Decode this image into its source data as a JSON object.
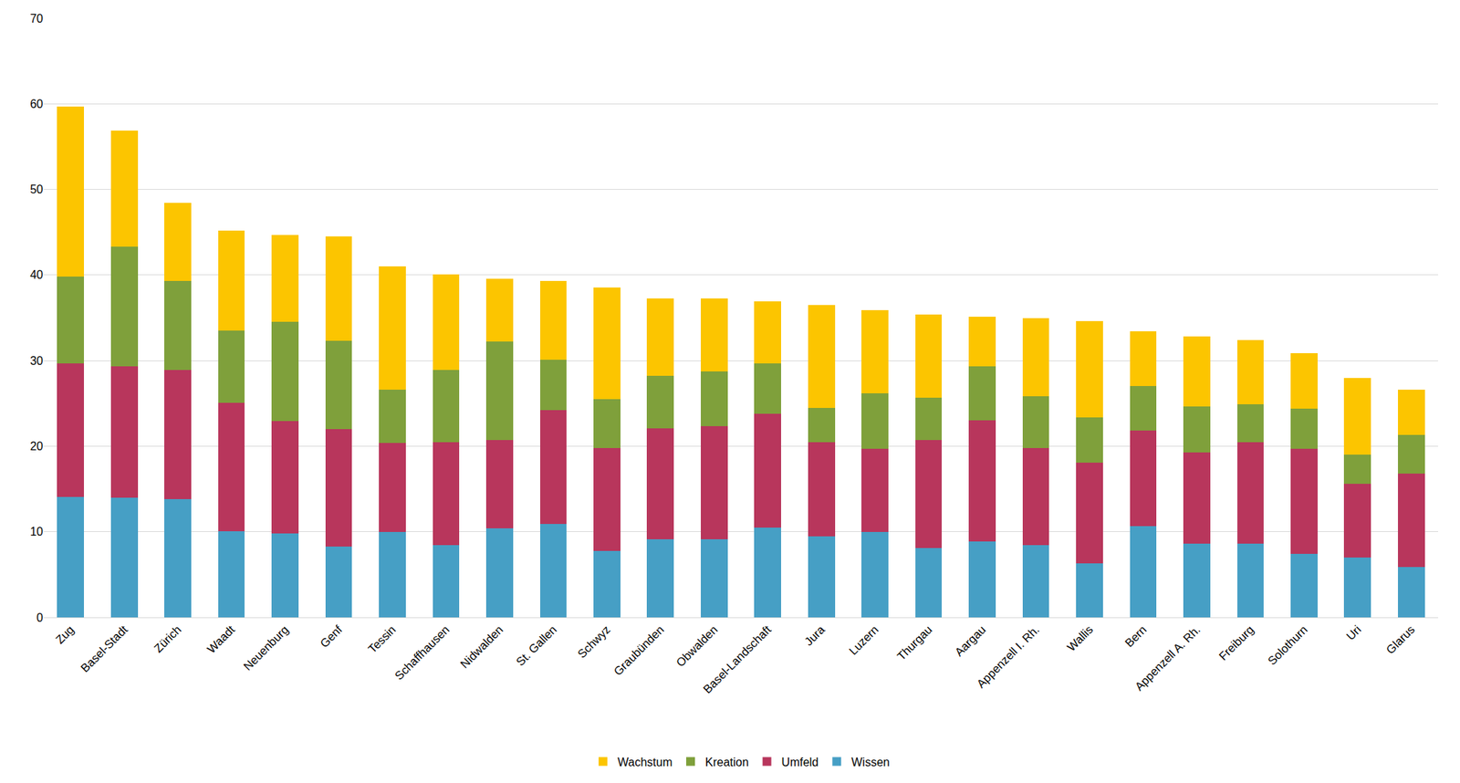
{
  "chart_data": {
    "type": "bar",
    "stacked": true,
    "grid": true,
    "legend": "bottom",
    "categories": [
      "Zug",
      "Basel-Stadt",
      "Zürich",
      "Waadt",
      "Neuenburg",
      "Genf",
      "Tessin",
      "Schaffhausen",
      "Nidwalden",
      "St. Gallen",
      "Schwyz",
      "Graubünden",
      "Obwalden",
      "Basel-Landschaft",
      "Jura",
      "Luzern",
      "Thurgau",
      "Aargau",
      "Appenzell I. Rh.",
      "Wallis",
      "Bern",
      "Appenzell A. Rh.",
      "Freiburg",
      "Solothurn",
      "Uri",
      "Glarus"
    ],
    "series": [
      {
        "name": "Wissen",
        "color": "#469fc5",
        "values": [
          14.1,
          14.0,
          13.8,
          10.1,
          9.8,
          8.3,
          10.0,
          8.4,
          10.4,
          10.9,
          7.8,
          9.1,
          9.1,
          10.5,
          9.5,
          10.0,
          8.1,
          8.9,
          8.4,
          6.3,
          10.7,
          8.6,
          8.6,
          7.4,
          7.0,
          5.9
        ]
      },
      {
        "name": "Umfeld",
        "color": "#b8365c",
        "values": [
          15.6,
          15.3,
          15.1,
          15.0,
          13.1,
          13.7,
          10.4,
          12.1,
          10.3,
          13.3,
          12.0,
          13.0,
          13.2,
          13.3,
          11.0,
          9.7,
          12.6,
          14.1,
          11.4,
          11.8,
          11.1,
          10.7,
          11.9,
          12.3,
          8.6,
          10.9
        ]
      },
      {
        "name": "Kreation",
        "color": "#7fa03b",
        "values": [
          10.1,
          14.0,
          10.4,
          8.4,
          11.6,
          10.3,
          6.2,
          8.4,
          11.5,
          5.9,
          5.7,
          6.1,
          6.4,
          5.9,
          4.0,
          6.5,
          5.0,
          6.3,
          6.0,
          5.3,
          5.2,
          5.3,
          4.4,
          4.7,
          3.4,
          4.5
        ]
      },
      {
        "name": "Wachstum",
        "color": "#fcc500",
        "values": [
          19.9,
          13.6,
          9.1,
          11.7,
          10.2,
          12.2,
          14.4,
          11.2,
          7.4,
          9.2,
          13.0,
          9.1,
          8.6,
          7.2,
          12.0,
          9.7,
          9.7,
          5.8,
          9.2,
          11.2,
          6.4,
          8.2,
          7.5,
          6.5,
          9.0,
          5.3
        ]
      }
    ],
    "ylim": [
      0,
      70
    ],
    "yticks": [
      0,
      10,
      20,
      30,
      40,
      50,
      60,
      70
    ]
  }
}
